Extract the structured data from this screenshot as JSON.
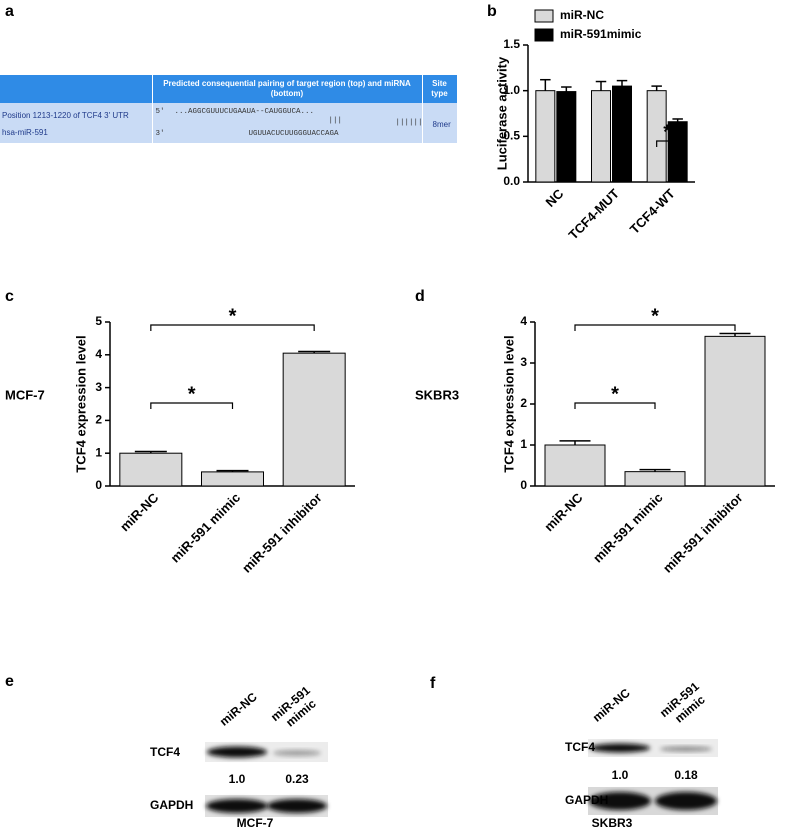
{
  "panel_labels": [
    "a",
    "b",
    "c",
    "d",
    "e",
    "f"
  ],
  "table": {
    "header": {
      "pairing": "Predicted consequential pairing of target region (top) and miRNA (bottom)",
      "site_type": "Site type"
    },
    "row": {
      "position": "Position 1213-1220 of TCF4 3' UTR",
      "mirna": "hsa-miR-591",
      "five_prime": "5'",
      "target": "...AGGCGUUUCUGAAUA--CAUGGUCA...",
      "pairing_top": "|||",
      "pairing_bottom": "|||||||",
      "three_prime": "3'",
      "mirna_seq": "UGUUACUCUUGGGUACCAGA",
      "site_type": "8mer"
    }
  },
  "chart_data": [
    {
      "type": "bar",
      "ylabel": "Luciferase activity",
      "categories": [
        "NC",
        "TCF4-MUT",
        "TCF4-WT"
      ],
      "series": [
        {
          "name": "miR-NC",
          "color": "#d9d9d9",
          "values": [
            1.0,
            1.0,
            1.0
          ],
          "errors": [
            0.12,
            0.1,
            0.05
          ]
        },
        {
          "name": "miR-591mimic",
          "color": "#000000",
          "values": [
            0.99,
            1.05,
            0.66
          ],
          "errors": [
            0.05,
            0.06,
            0.03
          ]
        }
      ],
      "ylim": [
        0,
        1.5
      ],
      "yticks": [
        {
          "value": 0,
          "label": "0.0"
        },
        0.5,
        {
          "value": 1,
          "label": "1.0"
        },
        1.5
      ],
      "annotations": [
        {
          "text": "*",
          "category": 2
        }
      ],
      "legend": "top"
    },
    {
      "type": "bar",
      "side_label": "MCF-7",
      "ylabel": "TCF4 expression level",
      "categories": [
        "miR-NC",
        "miR-591 mimic",
        "miR-591 inhibitor"
      ],
      "values": [
        1.0,
        0.43,
        4.05
      ],
      "errors": [
        0.05,
        0.04,
        0.05
      ],
      "color": "#d9d9d9",
      "ylim": [
        0,
        5
      ],
      "yticks": [
        0,
        1,
        2,
        3,
        4,
        5
      ],
      "annotations": [
        {
          "text": "*",
          "between": [
            0,
            2
          ]
        },
        {
          "text": "*",
          "between": [
            0,
            1
          ]
        }
      ]
    },
    {
      "type": "bar",
      "side_label": "SKBR3",
      "ylabel": "TCF4 expression level",
      "categories": [
        "miR-NC",
        "miR-591 mimic",
        "miR-591 inhibitor"
      ],
      "values": [
        1.0,
        0.35,
        3.65
      ],
      "errors": [
        0.1,
        0.05,
        0.07
      ],
      "color": "#d9d9d9",
      "ylim": [
        0,
        4
      ],
      "yticks": [
        0,
        1,
        2,
        3,
        4
      ],
      "annotations": [
        {
          "text": "*",
          "between": [
            0,
            2
          ]
        },
        {
          "text": "*",
          "between": [
            0,
            1
          ]
        }
      ]
    }
  ],
  "blots": [
    {
      "columns": [
        "miR-NC",
        "miR-591 mimic"
      ],
      "rows": [
        "TCF4",
        "GAPDH"
      ],
      "ratios": [
        "1.0",
        "0.23"
      ],
      "cell_line": "MCF-7"
    },
    {
      "columns": [
        "miR-NC",
        "miR-591 mimic"
      ],
      "rows": [
        "TCF4",
        "GAPDH"
      ],
      "ratios": [
        "1.0",
        "0.18"
      ],
      "cell_line": "SKBR3"
    }
  ]
}
